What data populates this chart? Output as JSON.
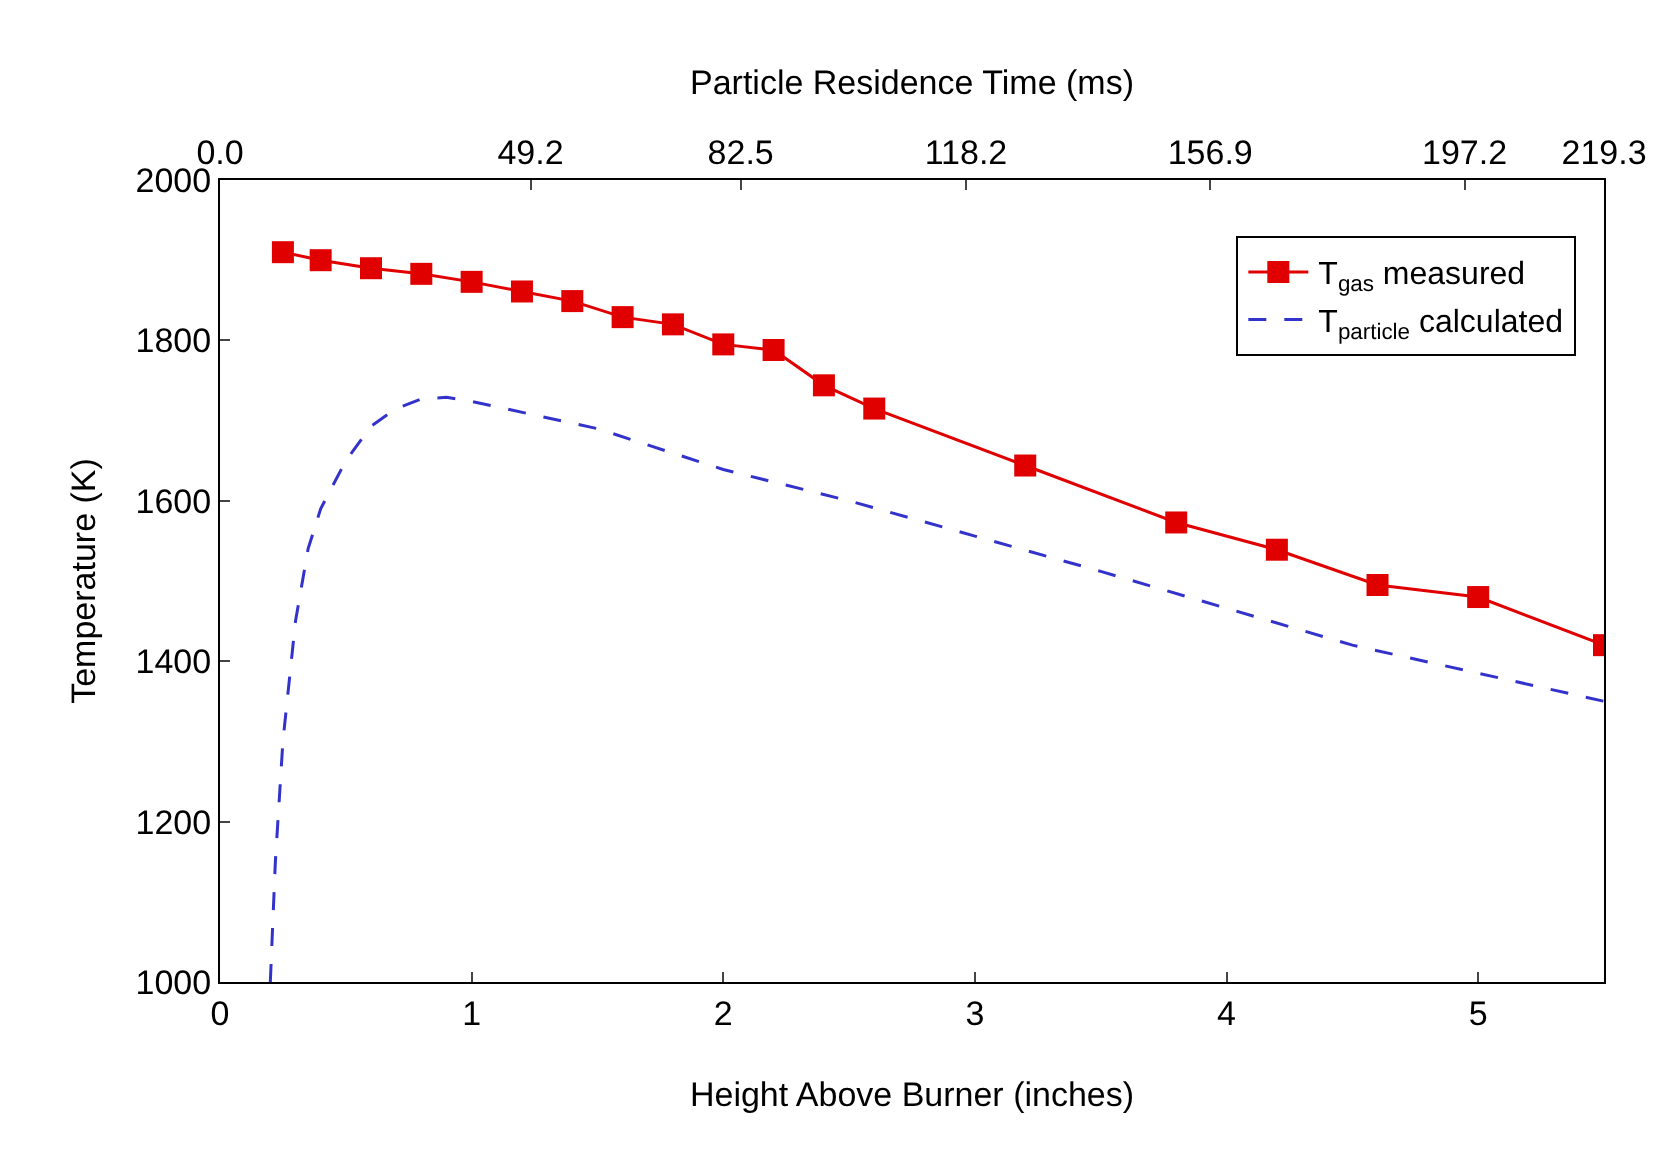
{
  "chart_data": {
    "type": "line",
    "xlabel": "Height Above Burner (inches)",
    "ylabel": "Temperature (K)",
    "x2label": "Particle Residence Time (ms)",
    "xlim": [
      0,
      5.5
    ],
    "xticks": [
      0,
      1,
      2,
      3,
      4,
      5
    ],
    "x2lim": [
      0,
      219.3
    ],
    "x2ticks": [
      {
        "value": 0,
        "label": "0.0"
      },
      49.2,
      82.5,
      118.2,
      156.9,
      197.2,
      219.3
    ],
    "ylim": [
      1000,
      2000
    ],
    "yticks": [
      1000,
      1200,
      1400,
      1600,
      1800,
      2000
    ],
    "legend": "top right",
    "series": [
      {
        "name": "T$_{gas}$ measured",
        "color": "#e00000",
        "marker": "square",
        "line_style": "solid",
        "x": [
          0.25,
          0.4,
          0.6,
          0.8,
          1.0,
          1.2,
          1.4,
          1.6,
          1.8,
          2.0,
          2.2,
          2.4,
          2.6,
          3.2,
          3.8,
          4.2,
          4.6,
          5.0,
          5.5
        ],
        "values": [
          1910,
          1900,
          1890,
          1883,
          1873,
          1861,
          1849,
          1829,
          1820,
          1795,
          1788,
          1744,
          1715,
          1644,
          1573,
          1539,
          1495,
          1480,
          1420
        ]
      },
      {
        "name": "T$_{particle}$ calculated",
        "color": "#3333cc",
        "marker": "none",
        "line_style": "dashed",
        "x": [
          0.2,
          0.22,
          0.25,
          0.3,
          0.35,
          0.4,
          0.5,
          0.6,
          0.7,
          0.8,
          0.9,
          1.0,
          1.5,
          2.0,
          2.5,
          3.0,
          3.5,
          4.0,
          4.5,
          5.0,
          5.5
        ],
        "values": [
          1000,
          1150,
          1300,
          1450,
          1540,
          1590,
          1650,
          1693,
          1715,
          1727,
          1729,
          1724,
          1690,
          1639,
          1600,
          1556,
          1512,
          1466,
          1420,
          1385,
          1350
        ]
      }
    ]
  }
}
